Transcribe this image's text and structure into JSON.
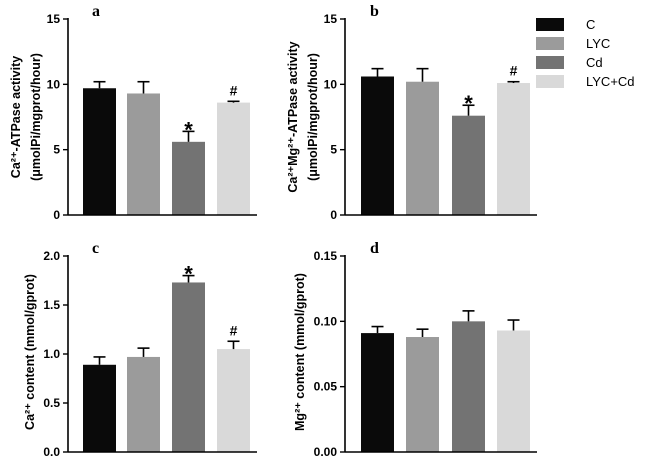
{
  "legend": {
    "entries": [
      {
        "label": "C",
        "color": "#0a0a0a"
      },
      {
        "label": "LYC",
        "color": "#9b9b9b"
      },
      {
        "label": "Cd",
        "color": "#737373"
      },
      {
        "label": "LYC+Cd",
        "color": "#d9d9d9"
      }
    ]
  },
  "chart_data": [
    {
      "type": "bar",
      "panel": "a",
      "categories": [
        "C",
        "LYC",
        "Cd",
        "LYC+Cd"
      ],
      "values": [
        9.7,
        9.3,
        5.6,
        8.6
      ],
      "errors": [
        0.5,
        0.9,
        0.8,
        0.1
      ],
      "marks": [
        "",
        "",
        "*",
        "#"
      ],
      "ylabel_lines": [
        "Ca²⁺-ATPase activity",
        "(μmolPi/mgprot/hour)"
      ],
      "ylim": [
        0,
        15
      ],
      "yticks": [
        0,
        5,
        10,
        15
      ],
      "tick_labels": [
        "0",
        "5",
        "10",
        "15"
      ]
    },
    {
      "type": "bar",
      "panel": "b",
      "categories": [
        "C",
        "LYC",
        "Cd",
        "LYC+Cd"
      ],
      "values": [
        10.6,
        10.2,
        7.6,
        10.1
      ],
      "errors": [
        0.6,
        1.0,
        0.8,
        0.1
      ],
      "marks": [
        "",
        "",
        "*",
        "#"
      ],
      "ylabel_lines": [
        "Ca²⁺Mg²⁺-ATPase activity",
        "(μmolPi/mgprot/hour)"
      ],
      "ylim": [
        0,
        15
      ],
      "yticks": [
        0,
        5,
        10,
        15
      ],
      "tick_labels": [
        "0",
        "5",
        "10",
        "15"
      ]
    },
    {
      "type": "bar",
      "panel": "c",
      "categories": [
        "C",
        "LYC",
        "Cd",
        "LYC+Cd"
      ],
      "values": [
        0.89,
        0.97,
        1.73,
        1.05
      ],
      "errors": [
        0.08,
        0.09,
        0.07,
        0.08
      ],
      "marks": [
        "",
        "",
        "*",
        "#"
      ],
      "ylabel_lines": [
        "Ca²⁺ content (mmol/gprot)"
      ],
      "ylim": [
        0,
        2.0
      ],
      "yticks": [
        0,
        0.5,
        1.0,
        1.5,
        2.0
      ],
      "tick_labels": [
        "0.0",
        "0.5",
        "1.0",
        "1.5",
        "2.0"
      ]
    },
    {
      "type": "bar",
      "panel": "d",
      "categories": [
        "C",
        "LYC",
        "Cd",
        "LYC+Cd"
      ],
      "values": [
        0.091,
        0.088,
        0.1,
        0.093
      ],
      "errors": [
        0.005,
        0.006,
        0.008,
        0.008
      ],
      "marks": [
        "",
        "",
        "",
        ""
      ],
      "ylabel_lines": [
        "Mg²⁺ content (mmol/gprot)"
      ],
      "ylim": [
        0,
        0.15
      ],
      "yticks": [
        0,
        0.05,
        0.1,
        0.15
      ],
      "tick_labels": [
        "0.00",
        "0.05",
        "0.10",
        "0.15"
      ]
    }
  ]
}
